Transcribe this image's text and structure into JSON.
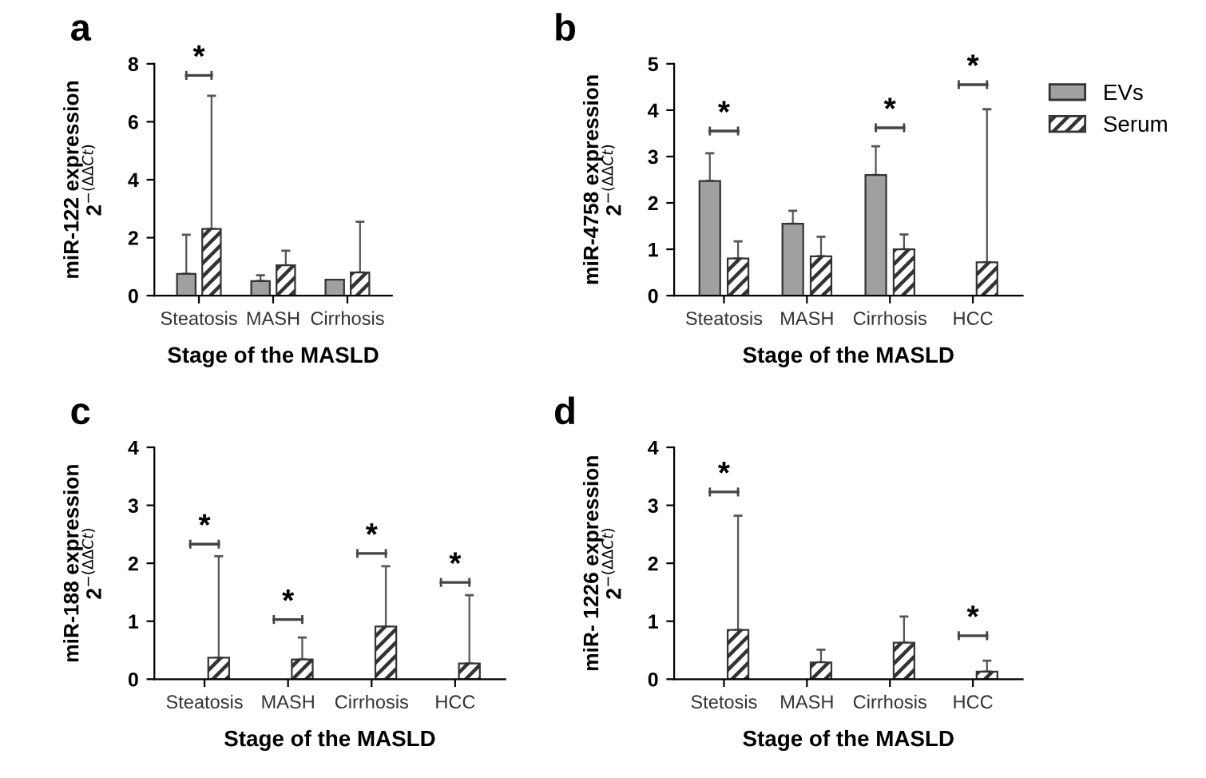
{
  "chart_data": [
    {
      "type": "bar",
      "title": "a",
      "ylabel": "miR-122 expression\n2$^{−(ΔΔCt)}$",
      "xlabel": "Stage of the MASLD",
      "categories": [
        "Steatosis",
        "MASH",
        "Cirrhosis"
      ],
      "ylim": [
        0,
        8
      ],
      "yticks": [
        0,
        2,
        4,
        6,
        8
      ],
      "grid": false,
      "legend": false,
      "series": [
        {
          "color": "#a0a0a0",
          "values": [
            0.75,
            0.5,
            0.55
          ],
          "errors": [
            [
              0.75,
              2.1
            ],
            [
              0.5,
              0.7
            ],
            null
          ]
        },
        {
          "color": "#333333",
          "values": [
            2.3,
            1.05,
            0.8
          ],
          "errors": [
            [
              2.3,
              6.9
            ],
            [
              1.05,
              1.55
            ],
            [
              0.8,
              2.55
            ]
          ]
        }
      ],
      "annotations": [
        "*"
      ]
    },
    {
      "type": "bar",
      "title": "b",
      "ylabel": "miR-4758 expression\n2$^{−(ΔΔCt)}$",
      "xlabel": "Stage of the MASLD",
      "categories": [
        "Steatosis",
        "MASH",
        "Cirrhosis",
        "HCC"
      ],
      "ylim": [
        0,
        5
      ],
      "yticks": [
        0,
        1,
        2,
        3,
        4,
        5
      ],
      "grid": false,
      "legend": "right",
      "series": [
        {
          "name": "EVs",
          "color": "#a0a0a0",
          "values": [
            2.47,
            1.55,
            2.6,
            null
          ],
          "errors": [
            [
              2.47,
              3.07
            ],
            [
              1.55,
              1.83
            ],
            [
              2.6,
              3.22
            ],
            null
          ]
        },
        {
          "name": "Serum",
          "color": "#333333",
          "values": [
            0.8,
            0.85,
            1.0,
            0.72
          ],
          "errors": [
            [
              0.8,
              1.17
            ],
            [
              0.85,
              1.27
            ],
            [
              1.0,
              1.32
            ],
            [
              0.72,
              4.02
            ]
          ]
        }
      ],
      "annotations": [
        "*",
        "*",
        "*"
      ]
    },
    {
      "type": "bar",
      "title": "c",
      "ylabel": "miR-188 expression\n2$^{−(ΔΔCt)}$",
      "xlabel": "Stage of the MASLD",
      "categories": [
        "Steatosis",
        "MASH",
        "Cirrhosis",
        "HCC"
      ],
      "ylim": [
        0,
        4
      ],
      "yticks": [
        0,
        1,
        2,
        3,
        4
      ],
      "grid": false,
      "legend": false,
      "series": [
        {
          "color": "#a0a0a0",
          "values": [
            null,
            null,
            null,
            null
          ]
        },
        {
          "color": "#333333",
          "values": [
            0.37,
            0.34,
            0.91,
            0.27
          ],
          "errors": [
            [
              0.37,
              2.12
            ],
            [
              0.34,
              0.72
            ],
            [
              0.91,
              1.95
            ],
            [
              0.27,
              1.45
            ]
          ]
        }
      ],
      "annotations": [
        "*",
        "*",
        "*",
        "*"
      ]
    },
    {
      "type": "bar",
      "title": "d",
      "ylabel": "miR- 1226 expression\n2$^{−(ΔΔCt)}$",
      "xlabel": "Stage of the MASLD",
      "categories": [
        "Stetosis",
        "MASH",
        "Cirrhosis",
        "HCC"
      ],
      "ylim": [
        0,
        4
      ],
      "yticks": [
        0,
        1,
        2,
        3,
        4
      ],
      "grid": false,
      "legend": false,
      "series": [
        {
          "color": "#a0a0a0",
          "values": [
            null,
            null,
            null,
            null
          ]
        },
        {
          "color": "#333333",
          "values": [
            0.85,
            0.29,
            0.63,
            0.13
          ],
          "errors": [
            [
              0.85,
              2.82
            ],
            [
              0.29,
              0.51
            ],
            [
              0.63,
              1.08
            ],
            [
              0.13,
              0.32
            ]
          ]
        }
      ],
      "annotations": [
        "*",
        "*"
      ]
    }
  ]
}
